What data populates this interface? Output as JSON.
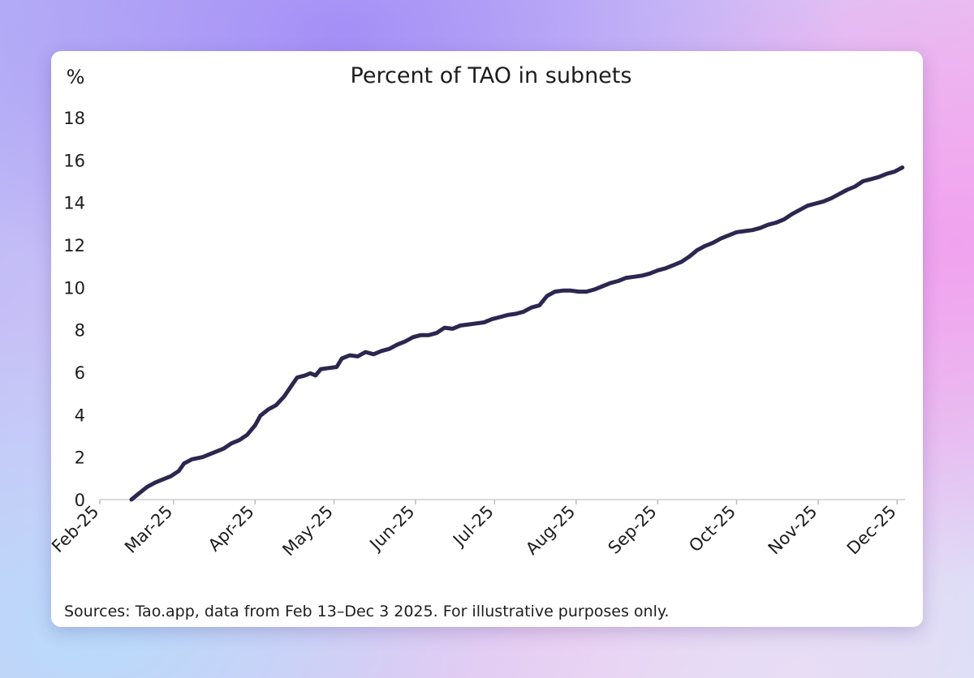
{
  "chart_data": {
    "type": "line",
    "title": "Percent of TAO in subnets",
    "ylabel": "%",
    "xlabel": "",
    "ylim": [
      0,
      18
    ],
    "yticks": [
      0,
      2,
      4,
      6,
      8,
      10,
      12,
      14,
      16,
      18
    ],
    "xlim": [
      "2025-02-01",
      "2025-12-04"
    ],
    "xticks": [
      {
        "label": "Feb-25",
        "date": "2025-02-01"
      },
      {
        "label": "Mar-25",
        "date": "2025-03-01"
      },
      {
        "label": "Apr-25",
        "date": "2025-04-01"
      },
      {
        "label": "May-25",
        "date": "2025-05-01"
      },
      {
        "label": "Jun-25",
        "date": "2025-06-01"
      },
      {
        "label": "Jul-25",
        "date": "2025-07-01"
      },
      {
        "label": "Aug-25",
        "date": "2025-08-01"
      },
      {
        "label": "Sep-25",
        "date": "2025-09-01"
      },
      {
        "label": "Oct-25",
        "date": "2025-10-01"
      },
      {
        "label": "Nov-25",
        "date": "2025-11-01"
      },
      {
        "label": "Dec-25",
        "date": "2025-12-01"
      }
    ],
    "grid": false,
    "series": [
      {
        "color": "#2b2750",
        "points": [
          [
            "2025-02-13",
            0.0
          ],
          [
            "2025-02-16",
            0.3
          ],
          [
            "2025-02-19",
            0.6
          ],
          [
            "2025-02-22",
            0.8
          ],
          [
            "2025-02-25",
            0.95
          ],
          [
            "2025-02-28",
            1.1
          ],
          [
            "2025-03-03",
            1.35
          ],
          [
            "2025-03-05",
            1.7
          ],
          [
            "2025-03-08",
            1.9
          ],
          [
            "2025-03-12",
            2.0
          ],
          [
            "2025-03-16",
            2.2
          ],
          [
            "2025-03-20",
            2.4
          ],
          [
            "2025-03-23",
            2.65
          ],
          [
            "2025-03-26",
            2.8
          ],
          [
            "2025-03-29",
            3.05
          ],
          [
            "2025-04-01",
            3.5
          ],
          [
            "2025-04-03",
            3.95
          ],
          [
            "2025-04-06",
            4.25
          ],
          [
            "2025-04-09",
            4.45
          ],
          [
            "2025-04-12",
            4.85
          ],
          [
            "2025-04-15",
            5.4
          ],
          [
            "2025-04-17",
            5.75
          ],
          [
            "2025-04-20",
            5.85
          ],
          [
            "2025-04-22",
            5.95
          ],
          [
            "2025-04-24",
            5.85
          ],
          [
            "2025-04-26",
            6.15
          ],
          [
            "2025-04-29",
            6.2
          ],
          [
            "2025-05-02",
            6.25
          ],
          [
            "2025-05-04",
            6.65
          ],
          [
            "2025-05-07",
            6.8
          ],
          [
            "2025-05-10",
            6.75
          ],
          [
            "2025-05-13",
            6.95
          ],
          [
            "2025-05-16",
            6.85
          ],
          [
            "2025-05-19",
            7.0
          ],
          [
            "2025-05-22",
            7.1
          ],
          [
            "2025-05-25",
            7.3
          ],
          [
            "2025-05-28",
            7.45
          ],
          [
            "2025-05-31",
            7.65
          ],
          [
            "2025-06-03",
            7.75
          ],
          [
            "2025-06-06",
            7.75
          ],
          [
            "2025-06-09",
            7.85
          ],
          [
            "2025-06-12",
            8.1
          ],
          [
            "2025-06-15",
            8.05
          ],
          [
            "2025-06-18",
            8.2
          ],
          [
            "2025-06-21",
            8.25
          ],
          [
            "2025-06-24",
            8.3
          ],
          [
            "2025-06-27",
            8.35
          ],
          [
            "2025-06-30",
            8.5
          ],
          [
            "2025-07-03",
            8.6
          ],
          [
            "2025-07-06",
            8.7
          ],
          [
            "2025-07-09",
            8.75
          ],
          [
            "2025-07-12",
            8.85
          ],
          [
            "2025-07-15",
            9.05
          ],
          [
            "2025-07-18",
            9.15
          ],
          [
            "2025-07-21",
            9.6
          ],
          [
            "2025-07-24",
            9.8
          ],
          [
            "2025-07-27",
            9.85
          ],
          [
            "2025-07-30",
            9.85
          ],
          [
            "2025-08-02",
            9.8
          ],
          [
            "2025-08-05",
            9.8
          ],
          [
            "2025-08-08",
            9.9
          ],
          [
            "2025-08-11",
            10.05
          ],
          [
            "2025-08-14",
            10.2
          ],
          [
            "2025-08-17",
            10.3
          ],
          [
            "2025-08-20",
            10.45
          ],
          [
            "2025-08-23",
            10.5
          ],
          [
            "2025-08-26",
            10.55
          ],
          [
            "2025-08-29",
            10.65
          ],
          [
            "2025-09-01",
            10.8
          ],
          [
            "2025-09-04",
            10.9
          ],
          [
            "2025-09-07",
            11.05
          ],
          [
            "2025-09-10",
            11.2
          ],
          [
            "2025-09-13",
            11.45
          ],
          [
            "2025-09-16",
            11.75
          ],
          [
            "2025-09-19",
            11.95
          ],
          [
            "2025-09-22",
            12.1
          ],
          [
            "2025-09-25",
            12.3
          ],
          [
            "2025-09-28",
            12.45
          ],
          [
            "2025-10-01",
            12.6
          ],
          [
            "2025-10-04",
            12.65
          ],
          [
            "2025-10-07",
            12.7
          ],
          [
            "2025-10-10",
            12.8
          ],
          [
            "2025-10-13",
            12.95
          ],
          [
            "2025-10-16",
            13.05
          ],
          [
            "2025-10-19",
            13.2
          ],
          [
            "2025-10-22",
            13.45
          ],
          [
            "2025-10-25",
            13.65
          ],
          [
            "2025-10-28",
            13.85
          ],
          [
            "2025-10-31",
            13.95
          ],
          [
            "2025-11-03",
            14.05
          ],
          [
            "2025-11-06",
            14.2
          ],
          [
            "2025-11-09",
            14.4
          ],
          [
            "2025-11-12",
            14.6
          ],
          [
            "2025-11-15",
            14.75
          ],
          [
            "2025-11-18",
            15.0
          ],
          [
            "2025-11-21",
            15.1
          ],
          [
            "2025-11-24",
            15.2
          ],
          [
            "2025-11-27",
            15.35
          ],
          [
            "2025-11-30",
            15.45
          ],
          [
            "2025-12-03",
            15.65
          ]
        ]
      }
    ]
  },
  "source_note": "Sources: Tao.app, data from Feb 13–Dec 3 2025. For illustrative purposes only."
}
